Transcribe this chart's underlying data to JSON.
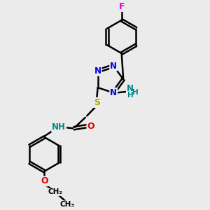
{
  "bg_color": "#ebebeb",
  "line_color": "#000000",
  "bond_lw": 1.8,
  "atom_colors": {
    "N": "#0000ee",
    "S": "#aaaa00",
    "O": "#dd0000",
    "F": "#dd00dd",
    "NH": "#008888",
    "C": "#000000"
  },
  "font_size": 8.5,
  "fig_size": [
    3.0,
    3.0
  ],
  "dpi": 100,
  "xlim": [
    0,
    10
  ],
  "ylim": [
    0,
    10
  ]
}
